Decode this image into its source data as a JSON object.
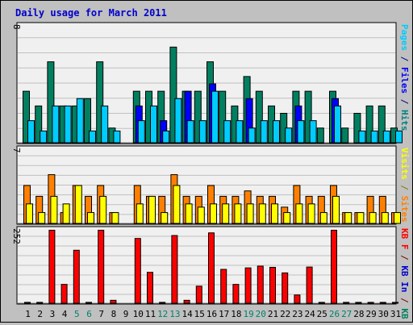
{
  "chart_data": [
    {
      "type": "bar",
      "title": "Daily usage for March 2011",
      "panel": "top",
      "ymax_label": "8",
      "ylim": [
        0,
        8
      ],
      "ylabel_parts": [
        {
          "text": "Pages",
          "color": "#00ccff"
        },
        {
          "text": " / ",
          "color": "#000080"
        },
        {
          "text": "Files",
          "color": "#0000ff"
        },
        {
          "text": " / ",
          "color": "#000080"
        },
        {
          "text": "Hits",
          "color": "#008080"
        }
      ],
      "categories": [
        "1",
        "2",
        "3",
        "4",
        "5",
        "6",
        "7",
        "8",
        "9",
        "10",
        "11",
        "12",
        "13",
        "14",
        "15",
        "16",
        "17",
        "18",
        "19",
        "20",
        "21",
        "22",
        "23",
        "24",
        "25",
        "26",
        "27",
        "28",
        "29",
        "30",
        "31"
      ],
      "series": [
        {
          "name": "Hits",
          "color": "#008060",
          "values": [
            3.5,
            2.5,
            5.5,
            2.5,
            2.5,
            3,
            5.5,
            1,
            0,
            3.5,
            3.5,
            3.5,
            6.5,
            3.5,
            3.5,
            5.5,
            3.5,
            2.5,
            4.5,
            3.5,
            2.5,
            2,
            3.5,
            3.5,
            1,
            3.5,
            1,
            2,
            2.5,
            2.5,
            1
          ]
        },
        {
          "name": "Files",
          "color": "#0000ff",
          "values": [
            0,
            0,
            0,
            0,
            0,
            0,
            0,
            0,
            0,
            2.5,
            0,
            1.5,
            0,
            3.5,
            0,
            4,
            0,
            0,
            3,
            0,
            0,
            0,
            2.5,
            0,
            0,
            3,
            0,
            0,
            0,
            0,
            0
          ]
        },
        {
          "name": "Pages",
          "color": "#00ccff",
          "values": [
            1.5,
            0.8,
            2.5,
            2.5,
            3,
            0.8,
            2.5,
            0.8,
            0,
            1.5,
            2.5,
            0.8,
            3,
            1.5,
            1.5,
            3.5,
            1.5,
            1.5,
            1,
            1.5,
            1.5,
            1,
            1.5,
            1.5,
            0,
            2.5,
            0,
            0.8,
            0.8,
            0.8,
            0.8
          ]
        }
      ]
    },
    {
      "type": "bar",
      "panel": "middle",
      "ymax_label": "7",
      "ylim": [
        0,
        7
      ],
      "ylabel_parts": [
        {
          "text": "Visits",
          "color": "#ffff00"
        },
        {
          "text": " / ",
          "color": "#808000"
        },
        {
          "text": "Sites",
          "color": "#ff8000"
        }
      ],
      "categories": [
        "1",
        "2",
        "3",
        "4",
        "5",
        "6",
        "7",
        "8",
        "9",
        "10",
        "11",
        "12",
        "13",
        "14",
        "15",
        "16",
        "17",
        "18",
        "19",
        "20",
        "21",
        "22",
        "23",
        "24",
        "25",
        "26",
        "27",
        "28",
        "29",
        "30",
        "31"
      ],
      "series": [
        {
          "name": "Sites",
          "color": "#ff8000",
          "values": [
            3.5,
            2.5,
            4.5,
            1,
            3.5,
            2.5,
            3.5,
            1,
            0,
            3.5,
            2.5,
            2.5,
            4.5,
            2.5,
            2.5,
            3.5,
            2.5,
            2.5,
            3,
            2.5,
            2.5,
            1.5,
            3.5,
            2.5,
            2.5,
            3.5,
            1,
            1,
            2.5,
            2.5,
            1
          ]
        },
        {
          "name": "Visits",
          "color": "#ffff00",
          "values": [
            1.8,
            1,
            2.5,
            1.8,
            3.5,
            1,
            2.5,
            1,
            0,
            1.8,
            2.5,
            1,
            3.5,
            1.8,
            1.5,
            1.8,
            1.8,
            1.8,
            1.8,
            1.8,
            1.8,
            1,
            1.8,
            1.8,
            1,
            2.5,
            1,
            1,
            1,
            1,
            1
          ]
        }
      ]
    },
    {
      "type": "bar",
      "panel": "bottom",
      "ymax_label": "252",
      "ylim": [
        0,
        252
      ],
      "ylabel_parts": [
        {
          "text": "KB F",
          "color": "#ff0000"
        },
        {
          "text": " / ",
          "color": "#800000"
        },
        {
          "text": "KB In",
          "color": "#0000cc"
        },
        {
          "text": " / ",
          "color": "#800000"
        },
        {
          "text": "KB Out",
          "color": "#008060"
        }
      ],
      "categories": [
        "1",
        "2",
        "3",
        "4",
        "5",
        "6",
        "7",
        "8",
        "9",
        "10",
        "11",
        "12",
        "13",
        "14",
        "15",
        "16",
        "17",
        "18",
        "19",
        "20",
        "21",
        "22",
        "23",
        "24",
        "25",
        "26",
        "27",
        "28",
        "29",
        "30",
        "31"
      ],
      "series": [
        {
          "name": "KB F",
          "color": "#ff0000",
          "values": [
            3,
            3,
            248,
            64,
            180,
            3,
            248,
            10,
            0,
            220,
            105,
            3,
            230,
            10,
            58,
            239,
            115,
            64,
            120,
            126,
            122,
            103,
            28,
            123,
            3,
            248,
            3,
            3,
            3,
            3,
            3
          ]
        }
      ],
      "x_tick_labels": [
        {
          "label": "1",
          "color": "#000000"
        },
        {
          "label": "2",
          "color": "#000000"
        },
        {
          "label": "3",
          "color": "#000000"
        },
        {
          "label": "4",
          "color": "#000000"
        },
        {
          "label": "5",
          "color": "#00806b"
        },
        {
          "label": "6",
          "color": "#00806b"
        },
        {
          "label": "7",
          "color": "#000000"
        },
        {
          "label": "8",
          "color": "#000000"
        },
        {
          "label": "9",
          "color": "#000000"
        },
        {
          "label": "10",
          "color": "#000000"
        },
        {
          "label": "11",
          "color": "#000000"
        },
        {
          "label": "12",
          "color": "#00806b"
        },
        {
          "label": "13",
          "color": "#00806b"
        },
        {
          "label": "14",
          "color": "#000000"
        },
        {
          "label": "15",
          "color": "#000000"
        },
        {
          "label": "16",
          "color": "#000000"
        },
        {
          "label": "17",
          "color": "#000000"
        },
        {
          "label": "18",
          "color": "#000000"
        },
        {
          "label": "19",
          "color": "#00806b"
        },
        {
          "label": "20",
          "color": "#00806b"
        },
        {
          "label": "21",
          "color": "#000000"
        },
        {
          "label": "22",
          "color": "#000000"
        },
        {
          "label": "23",
          "color": "#000000"
        },
        {
          "label": "24",
          "color": "#000000"
        },
        {
          "label": "25",
          "color": "#000000"
        },
        {
          "label": "26",
          "color": "#00806b"
        },
        {
          "label": "27",
          "color": "#00806b"
        },
        {
          "label": "28",
          "color": "#000000"
        },
        {
          "label": "29",
          "color": "#000000"
        },
        {
          "label": "30",
          "color": "#000000"
        },
        {
          "label": "31",
          "color": "#000000"
        }
      ]
    }
  ],
  "colors": {
    "background": "#c0c0c0",
    "plot_background": "#f0f0f0",
    "title": "#0000cc",
    "grid": "#c0c0c0",
    "axis_label": "#000000"
  }
}
